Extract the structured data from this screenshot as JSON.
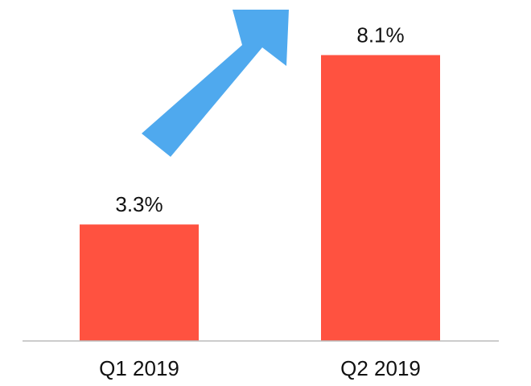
{
  "chart_data": {
    "type": "bar",
    "categories": [
      "Q1 2019",
      "Q2 2019"
    ],
    "values": [
      3.3,
      8.1
    ],
    "value_labels": [
      "3.3%",
      "8.1%"
    ],
    "title": "",
    "xlabel": "",
    "ylabel": "",
    "ylim": [
      0,
      9.0
    ],
    "grid": false,
    "legend": "none",
    "annotation": "upward-trend-arrow"
  },
  "colors": {
    "bar": "#ff5240",
    "arrow": "#4fa9ee",
    "baseline": "#bbbbbb",
    "text": "#111111"
  }
}
